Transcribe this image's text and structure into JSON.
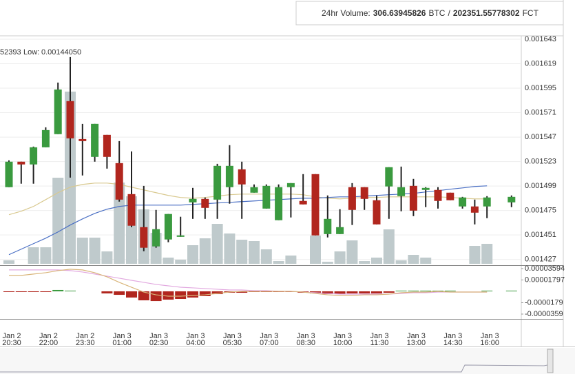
{
  "header": {
    "volume_label": "24hr Volume:",
    "btc_volume": "306.63945826",
    "btc_unit": "BTC",
    "separator": "/",
    "fct_volume": "202351.55778302",
    "fct_unit": "FCT"
  },
  "legend": {
    "fragment": "52393",
    "low_label": "Low:",
    "low_value": "0.00144050"
  },
  "chart_data": {
    "type": "candlestick",
    "categories": [
      {
        "date": "Jan 2",
        "time": "20:30"
      },
      null,
      null,
      {
        "date": "Jan 2",
        "time": "22:00"
      },
      null,
      null,
      {
        "date": "Jan 2",
        "time": "23:30"
      },
      null,
      null,
      {
        "date": "Jan 3",
        "time": "01:00"
      },
      null,
      null,
      {
        "date": "Jan 3",
        "time": "02:30"
      },
      null,
      null,
      {
        "date": "Jan 3",
        "time": "04:00"
      },
      null,
      null,
      {
        "date": "Jan 3",
        "time": "05:30"
      },
      null,
      null,
      {
        "date": "Jan 3",
        "time": "07:00"
      },
      null,
      null,
      {
        "date": "Jan 3",
        "time": "08:30"
      },
      null,
      null,
      {
        "date": "Jan 3",
        "time": "10:00"
      },
      null,
      null,
      {
        "date": "Jan 3",
        "time": "11:30"
      },
      null,
      null,
      {
        "date": "Jan 3",
        "time": "13:00"
      },
      null,
      null,
      {
        "date": "Jan 3",
        "time": "14:30"
      },
      null,
      null,
      {
        "date": "Jan 3",
        "time": "16:00"
      },
      null,
      null
    ],
    "open": [
      0.0014979,
      0.0015229,
      0.0015202,
      0.001537,
      0.0015499,
      0.0015823,
      0.0015451,
      0.0015276,
      0.0015492,
      0.0015215,
      0.0014911,
      0.0014587,
      0.0014398,
      0.0014466,
      0.0014492,
      0.001483,
      0.0014864,
      0.0014857,
      0.0014979,
      0.0015154,
      0.0014925,
      0.0014769,
      0.0014655,
      0.0014979,
      0.0014844,
      0.0015107,
      0.0014519,
      0.0014519,
      0.0014979,
      0.0014979,
      0.0014851,
      0.0014986,
      0.0014891,
      0.0014992,
      0.0014952,
      0.0014952,
      0.0014925,
      0.001479,
      0.001479,
      0.001479,
      null,
      0.001483
    ],
    "high": [
      0.0015242,
      0.0015229,
      0.0015377,
      0.0015566,
      0.0016005,
      0.0016255,
      0.00156,
      0.00156,
      0.0015492,
      0.0015431,
      0.001533,
      0.0014992,
      0.0014756,
      0.0014716,
      0.0014689,
      0.0014972,
      0.0014878,
      0.0015208,
      0.0015391,
      0.0015229,
      0.0015006,
      0.0015006,
      0.0015006,
      0.0015019,
      0.0015107,
      0.0015107,
      0.0014898,
      0.0014763,
      0.0015019,
      0.0014979,
      0.0014898,
      0.0015175,
      0.0015181,
      0.001506,
      0.0014979,
      0.0014979,
      0.0014925,
      0.0014884,
      0.0014857,
      0.0014891,
      null,
      0.0014898
    ],
    "low": [
      0.0014979,
      0.0015013,
      0.0015013,
      0.001537,
      0.0015499,
      0.0015073,
      0.0015094,
      0.0015229,
      0.0015161,
      0.0014837,
      0.0014587,
      0.0014351,
      0.0014385,
      0.0014439,
      0.0014492,
      0.0014668,
      0.0014668,
      0.0014668,
      0.0014817,
      0.0014668,
      0.0014925,
      0.0014769,
      0.0014655,
      0.0014682,
      0.001481,
      0.0014506,
      0.0014486,
      0.0014519,
      0.0014608,
      0.0014756,
      0.0014614,
      0.0014668,
      0.0014743,
      0.0014695,
      0.0014783,
      0.0014769,
      0.0014851,
      0.0014769,
      0.0014614,
      0.0014675,
      null,
      0.0014783
    ],
    "close": [
      0.0015229,
      0.0015202,
      0.001537,
      0.0015539,
      0.0015937,
      0.0015458,
      0.0015431,
      0.00156,
      0.0015276,
      0.0014857,
      0.0014601,
      0.0014385,
      0.0014567,
      0.0014716,
      0.0014506,
      0.0014864,
      0.0014776,
      0.0015188,
      0.0015188,
      0.0015006,
      0.0014979,
      0.0014992,
      0.0014979,
      0.0015019,
      0.001481,
      0.0014506,
      0.0014668,
      0.0014587,
      0.0014756,
      0.0014864,
      0.0014614,
      0.0015175,
      0.0014979,
      0.0014749,
      0.0014972,
      0.0014844,
      0.0014851,
      0.0014878,
      0.0014729,
      0.0014878,
      null,
      0.0014884
    ],
    "up_color": "#3a9a3f",
    "down_color": "#b1261e",
    "ylim": [
      0.0014214,
      0.0016477
    ],
    "yticks": [
      0.001643,
      0.001619,
      0.001595,
      0.001571,
      0.001547,
      0.001523,
      0.001499,
      0.001475,
      0.001451,
      0.001427
    ],
    "grid": true,
    "ma_series": [
      {
        "color": "#d9c98f",
        "values": [
          0.0014709,
          0.0014743,
          0.001479,
          0.0014857,
          0.0014925,
          0.0014979,
          0.0015006,
          0.0015019,
          0.0015019,
          0.0015006,
          0.0014979,
          0.0014952,
          0.0014925,
          0.0014898,
          0.0014878,
          0.0014871,
          0.0014878,
          0.0014891,
          0.0014905,
          0.0014911,
          0.0014911,
          0.0014911,
          0.0014911,
          0.0014911,
          0.0014905,
          0.0014884,
          0.0014871,
          0.0014864,
          0.0014871,
          0.0014878,
          0.0014878,
          0.0014884,
          0.0014884,
          0.0014884,
          0.0014884,
          0.0014884,
          0.0014878,
          0.0014871,
          0.0014864,
          0.0014864,
          null,
          0.0014864
        ]
      },
      {
        "color": "#4a6fc4",
        "values": [
          0.0014317,
          0.0014371,
          0.0014425,
          0.0014479,
          0.001454,
          0.0014608,
          0.0014668,
          0.0014722,
          0.0014763,
          0.001479,
          0.0014803,
          0.0014803,
          0.0014803,
          0.0014803,
          0.0014803,
          0.001481,
          0.0014817,
          0.0014824,
          0.001483,
          0.0014837,
          0.0014844,
          0.0014851,
          0.0014857,
          0.0014864,
          0.0014871,
          0.0014871,
          0.0014878,
          0.0014884,
          0.0014884,
          0.0014891,
          0.0014898,
          0.0014905,
          0.0014911,
          0.0014918,
          0.0014932,
          0.0014945,
          0.0014959,
          0.0014972,
          0.0014986,
          0.0014992,
          null,
          0.0014999
        ]
      }
    ],
    "volume": [
      5,
      0,
      24,
      24,
      125,
      250,
      38,
      38,
      18,
      118,
      98,
      79,
      45,
      9,
      6,
      27,
      37,
      58,
      44,
      35,
      33,
      21,
      4,
      12,
      0,
      41,
      3,
      18,
      34,
      4,
      9,
      50,
      5,
      13,
      9,
      0,
      0,
      0,
      26,
      29,
      null,
      0
    ],
    "volume_color": "#bfcacc",
    "vlim": [
      0,
      270
    ],
    "macd_hist": [
      -1.1e-06,
      -1.1e-06,
      -1.1e-06,
      -1.1e-06,
      2.2e-06,
      1.1e-06,
      0,
      0,
      -3.3e-06,
      -5.5e-06,
      -9.8e-06,
      -1.42e-05,
      -1.53e-05,
      -1.31e-05,
      -1.2e-05,
      -9.8e-06,
      -7.6e-06,
      -4.4e-06,
      -2.2e-06,
      -2.2e-06,
      -1.1e-06,
      -1.1e-06,
      -1.1e-06,
      -1.1e-06,
      -2.2e-06,
      -3.3e-06,
      -4.4e-06,
      -4.4e-06,
      -3.3e-06,
      -3.3e-06,
      -3.3e-06,
      -2.2e-06,
      1.1e-06,
      1.1e-06,
      1.1e-06,
      1.1e-06,
      1.1e-06,
      0,
      0,
      1.1e-06,
      null,
      1.1e-06
    ],
    "macd_series": [
      {
        "color": "#e2a9e0",
        "values": [
          3.38e-05,
          3.38e-05,
          3.38e-05,
          3.38e-05,
          3.38e-05,
          3.27e-05,
          3.05e-05,
          2.73e-05,
          2.4e-05,
          2.07e-05,
          1.74e-05,
          1.42e-05,
          1.09e-05,
          8.7e-06,
          6.5e-06,
          5.5e-06,
          4.4e-06,
          3.3e-06,
          2.2e-06,
          2.2e-06,
          1.1e-06,
          1.1e-06,
          0,
          0,
          -1.1e-06,
          -2.2e-06,
          -3.3e-06,
          -4.4e-06,
          -4.4e-06,
          -4.4e-06,
          -4.4e-06,
          -4.4e-06,
          -3.3e-06,
          -2.2e-06,
          -2.2e-06,
          -1.1e-06,
          -1.1e-06,
          -1.1e-06,
          -1.1e-06,
          -1.1e-06,
          null,
          -1.1e-06
        ]
      },
      {
        "color": "#d9b57a",
        "values": [
          2.51e-05,
          2.51e-05,
          2.73e-05,
          2.94e-05,
          3.27e-05,
          3.49e-05,
          3.38e-05,
          2.94e-05,
          2.29e-05,
          1.42e-05,
          6.5e-06,
          -1.1e-06,
          -5.5e-06,
          -7.6e-06,
          -7.6e-06,
          -6.5e-06,
          -5.5e-06,
          -3.3e-06,
          -1.1e-06,
          0,
          0,
          0,
          0,
          0,
          -1.1e-06,
          -3.3e-06,
          -5.5e-06,
          -6.5e-06,
          -6.5e-06,
          -5.5e-06,
          -5.5e-06,
          -4.4e-06,
          -2.2e-06,
          -1.1e-06,
          -1.1e-06,
          0,
          -1.1e-06,
          -1.1e-06,
          -1.1e-06,
          -1.1e-06,
          null,
          -1.1e-06
        ]
      }
    ],
    "macd_ylim": [
      -4.35e-05,
      4.13e-05
    ],
    "macd_yticks": [
      3.594e-05,
      1.797e-05,
      -1.79e-05,
      -3.59e-05
    ]
  }
}
